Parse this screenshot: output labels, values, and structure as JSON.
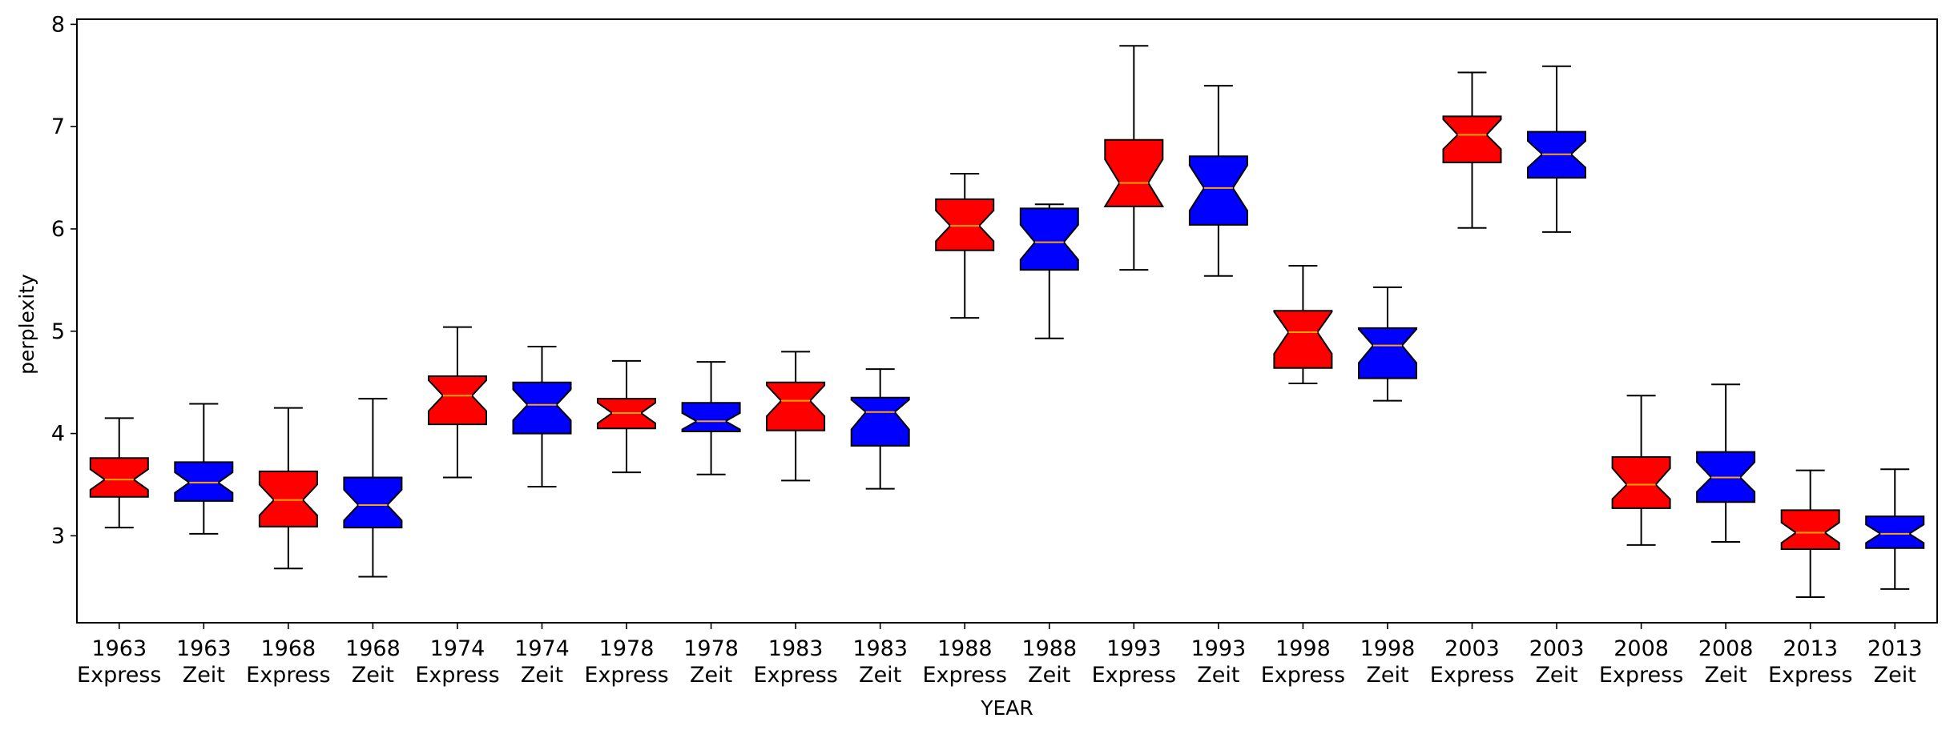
{
  "chart_data": {
    "type": "boxplot",
    "title": "",
    "xlabel": "YEAR",
    "ylabel": "perplexity",
    "ylim": [
      2.15,
      8.05
    ],
    "yticks": [
      3,
      4,
      5,
      6,
      7,
      8
    ],
    "notched": true,
    "grid": false,
    "colors": {
      "Express": "#ff0000",
      "Zeit": "#0000ff",
      "median": "#ffa500",
      "outline": "#000000"
    },
    "categories": [
      {
        "year": "1963",
        "source": "Express"
      },
      {
        "year": "1963",
        "source": "Zeit"
      },
      {
        "year": "1968",
        "source": "Express"
      },
      {
        "year": "1968",
        "source": "Zeit"
      },
      {
        "year": "1974",
        "source": "Express"
      },
      {
        "year": "1974",
        "source": "Zeit"
      },
      {
        "year": "1978",
        "source": "Express"
      },
      {
        "year": "1978",
        "source": "Zeit"
      },
      {
        "year": "1983",
        "source": "Express"
      },
      {
        "year": "1983",
        "source": "Zeit"
      },
      {
        "year": "1988",
        "source": "Express"
      },
      {
        "year": "1988",
        "source": "Zeit"
      },
      {
        "year": "1993",
        "source": "Express"
      },
      {
        "year": "1993",
        "source": "Zeit"
      },
      {
        "year": "1998",
        "source": "Express"
      },
      {
        "year": "1998",
        "source": "Zeit"
      },
      {
        "year": "2003",
        "source": "Express"
      },
      {
        "year": "2003",
        "source": "Zeit"
      },
      {
        "year": "2008",
        "source": "Express"
      },
      {
        "year": "2008",
        "source": "Zeit"
      },
      {
        "year": "2013",
        "source": "Express"
      },
      {
        "year": "2013",
        "source": "Zeit"
      }
    ],
    "boxes": [
      {
        "whislo": 3.08,
        "q1": 3.38,
        "med": 3.55,
        "q3": 3.76,
        "whishi": 4.15,
        "notch_lo": 3.45,
        "notch_hi": 3.65
      },
      {
        "whislo": 3.02,
        "q1": 3.34,
        "med": 3.52,
        "q3": 3.72,
        "whishi": 4.29,
        "notch_lo": 3.42,
        "notch_hi": 3.62
      },
      {
        "whislo": 2.68,
        "q1": 3.09,
        "med": 3.35,
        "q3": 3.63,
        "whishi": 4.25,
        "notch_lo": 3.2,
        "notch_hi": 3.5
      },
      {
        "whislo": 2.6,
        "q1": 3.08,
        "med": 3.3,
        "q3": 3.57,
        "whishi": 4.34,
        "notch_lo": 3.15,
        "notch_hi": 3.45
      },
      {
        "whislo": 3.57,
        "q1": 4.09,
        "med": 4.37,
        "q3": 4.56,
        "whishi": 5.04,
        "notch_lo": 4.22,
        "notch_hi": 4.52
      },
      {
        "whislo": 3.48,
        "q1": 4.0,
        "med": 4.28,
        "q3": 4.5,
        "whishi": 4.85,
        "notch_lo": 4.13,
        "notch_hi": 4.43
      },
      {
        "whislo": 3.62,
        "q1": 4.05,
        "med": 4.2,
        "q3": 4.34,
        "whishi": 4.71,
        "notch_lo": 4.1,
        "notch_hi": 4.3
      },
      {
        "whislo": 3.6,
        "q1": 4.02,
        "med": 4.12,
        "q3": 4.3,
        "whishi": 4.7,
        "notch_lo": 4.04,
        "notch_hi": 4.2
      },
      {
        "whislo": 3.54,
        "q1": 4.03,
        "med": 4.32,
        "q3": 4.5,
        "whishi": 4.8,
        "notch_lo": 4.17,
        "notch_hi": 4.47
      },
      {
        "whislo": 3.46,
        "q1": 3.88,
        "med": 4.21,
        "q3": 4.35,
        "whishi": 4.63,
        "notch_lo": 4.04,
        "notch_hi": 4.33
      },
      {
        "whislo": 5.13,
        "q1": 5.79,
        "med": 6.03,
        "q3": 6.29,
        "whishi": 6.54,
        "notch_lo": 5.88,
        "notch_hi": 6.18
      },
      {
        "whislo": 4.93,
        "q1": 5.6,
        "med": 5.87,
        "q3": 6.2,
        "whishi": 6.24,
        "notch_lo": 5.7,
        "notch_hi": 6.04
      },
      {
        "whislo": 5.6,
        "q1": 6.22,
        "med": 6.45,
        "q3": 6.87,
        "whishi": 7.79,
        "notch_lo": 6.22,
        "notch_hi": 6.68
      },
      {
        "whislo": 5.54,
        "q1": 6.04,
        "med": 6.4,
        "q3": 6.71,
        "whishi": 7.4,
        "notch_lo": 6.18,
        "notch_hi": 6.62
      },
      {
        "whislo": 4.49,
        "q1": 4.64,
        "med": 4.99,
        "q3": 5.2,
        "whishi": 5.64,
        "notch_lo": 4.78,
        "notch_hi": 5.19
      },
      {
        "whislo": 4.32,
        "q1": 4.54,
        "med": 4.86,
        "q3": 5.03,
        "whishi": 5.43,
        "notch_lo": 4.69,
        "notch_hi": 5.02
      },
      {
        "whislo": 6.01,
        "q1": 6.65,
        "med": 6.92,
        "q3": 7.1,
        "whishi": 7.53,
        "notch_lo": 6.78,
        "notch_hi": 7.07
      },
      {
        "whislo": 5.97,
        "q1": 6.5,
        "med": 6.73,
        "q3": 6.95,
        "whishi": 7.59,
        "notch_lo": 6.6,
        "notch_hi": 6.86
      },
      {
        "whislo": 2.91,
        "q1": 3.27,
        "med": 3.5,
        "q3": 3.77,
        "whishi": 4.37,
        "notch_lo": 3.36,
        "notch_hi": 3.66
      },
      {
        "whislo": 2.94,
        "q1": 3.33,
        "med": 3.57,
        "q3": 3.82,
        "whishi": 4.48,
        "notch_lo": 3.43,
        "notch_hi": 3.72
      },
      {
        "whislo": 2.4,
        "q1": 2.87,
        "med": 3.03,
        "q3": 3.25,
        "whishi": 3.64,
        "notch_lo": 2.93,
        "notch_hi": 3.13
      },
      {
        "whislo": 2.48,
        "q1": 2.88,
        "med": 3.02,
        "q3": 3.19,
        "whishi": 3.65,
        "notch_lo": 2.93,
        "notch_hi": 3.11
      }
    ]
  }
}
